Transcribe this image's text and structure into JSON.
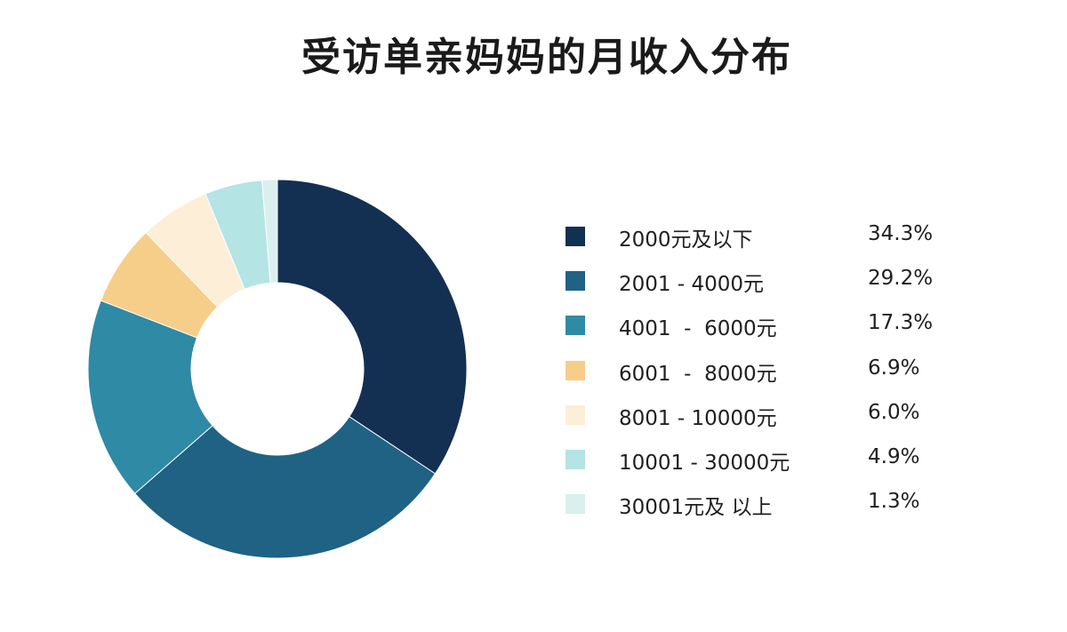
{
  "chart_data": {
    "type": "pie",
    "title": "受访单亲妈妈的月收入分布",
    "donut": true,
    "legend_position": "right",
    "slices": [
      {
        "label": "2000元及以下",
        "value": 34.3,
        "value_label": "34.3%",
        "color": "#132f52"
      },
      {
        "label": "2001 - 4000元",
        "value": 29.2,
        "value_label": "29.2%",
        "color": "#1f6283"
      },
      {
        "label": "4001  -  6000元",
        "value": 17.3,
        "value_label": "17.3%",
        "color": "#2f8aa5"
      },
      {
        "label": "6001  -  8000元",
        "value": 6.9,
        "value_label": "6.9%",
        "color": "#f6ce8a"
      },
      {
        "label": "8001 - 10000元",
        "value": 6.0,
        "value_label": "6.0%",
        "color": "#fdeed8"
      },
      {
        "label": "10001 - 30000元",
        "value": 4.9,
        "value_label": "4.9%",
        "color": "#b4e4e3"
      },
      {
        "label": "30001元及 以上",
        "value": 1.3,
        "value_label": "1.3%",
        "color": "#daf0ee"
      }
    ]
  }
}
